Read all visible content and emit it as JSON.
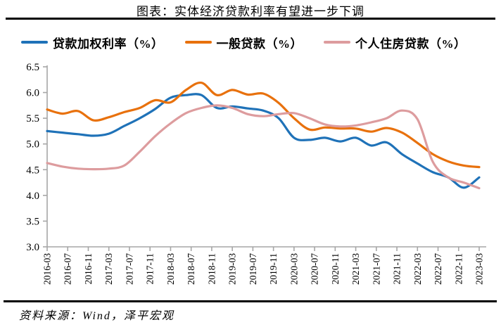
{
  "page": {
    "title": "图表：实体经济贷款利率有望进一步下调",
    "source_note": "资料来源：Wind，泽平宏观"
  },
  "style": {
    "axis_color": "#a6a6a6",
    "text_color": "#000000",
    "blue": "#1f72b8",
    "orange": "#e8710d",
    "pink": "#dd9c9e"
  },
  "chart_data": {
    "type": "line",
    "title": "图表：实体经济贷款利率有望进一步下调",
    "xlabel": "",
    "ylabel": "",
    "ylim": [
      3.0,
      6.5
    ],
    "y_ticks": [
      6.5,
      6.0,
      5.5,
      5.0,
      4.5,
      4.0,
      3.5,
      3.0
    ],
    "grid": false,
    "legend_position": "top",
    "x_tick_labels": [
      "2016-03",
      "2016-07",
      "2016-11",
      "2017-03",
      "2017-07",
      "2017-11",
      "2018-03",
      "2018-07",
      "2018-11",
      "2019-03",
      "2019-07",
      "2019-11",
      "2020-03",
      "2020-07",
      "2020-11",
      "2021-03",
      "2021-07",
      "2021-11",
      "2022-03",
      "2022-07",
      "2022-11",
      "2023-03"
    ],
    "x": [
      "2016-03",
      "2016-06",
      "2016-09",
      "2016-12",
      "2017-03",
      "2017-06",
      "2017-09",
      "2017-12",
      "2018-03",
      "2018-06",
      "2018-09",
      "2018-12",
      "2019-03",
      "2019-06",
      "2019-09",
      "2019-12",
      "2020-03",
      "2020-06",
      "2020-09",
      "2020-12",
      "2021-03",
      "2021-06",
      "2021-09",
      "2021-12",
      "2022-03",
      "2022-06",
      "2022-09",
      "2022-12",
      "2023-03"
    ],
    "series": [
      {
        "name": "贷款加权利率（%）",
        "color": "#1f72b8",
        "values": [
          5.25,
          5.22,
          5.19,
          5.16,
          5.2,
          5.35,
          5.5,
          5.68,
          5.9,
          5.95,
          5.95,
          5.7,
          5.73,
          5.69,
          5.65,
          5.5,
          5.12,
          5.08,
          5.12,
          5.05,
          5.12,
          4.97,
          5.03,
          4.8,
          4.62,
          4.45,
          4.35,
          4.15,
          4.35
        ]
      },
      {
        "name": "一般贷款（%）",
        "color": "#e8710d",
        "values": [
          5.67,
          5.59,
          5.64,
          5.46,
          5.52,
          5.62,
          5.7,
          5.85,
          5.81,
          6.05,
          6.19,
          5.95,
          6.05,
          5.96,
          5.98,
          5.8,
          5.5,
          5.28,
          5.32,
          5.3,
          5.3,
          5.24,
          5.31,
          5.22,
          5.02,
          4.8,
          4.66,
          4.58,
          4.55
        ]
      },
      {
        "name": "个人住房贷款（%）",
        "color": "#dd9c9e",
        "values": [
          4.63,
          4.56,
          4.52,
          4.51,
          4.52,
          4.58,
          4.85,
          5.15,
          5.4,
          5.6,
          5.7,
          5.75,
          5.7,
          5.58,
          5.54,
          5.58,
          5.6,
          5.5,
          5.38,
          5.34,
          5.36,
          5.42,
          5.5,
          5.65,
          5.48,
          4.65,
          4.35,
          4.25,
          4.14
        ]
      }
    ]
  }
}
